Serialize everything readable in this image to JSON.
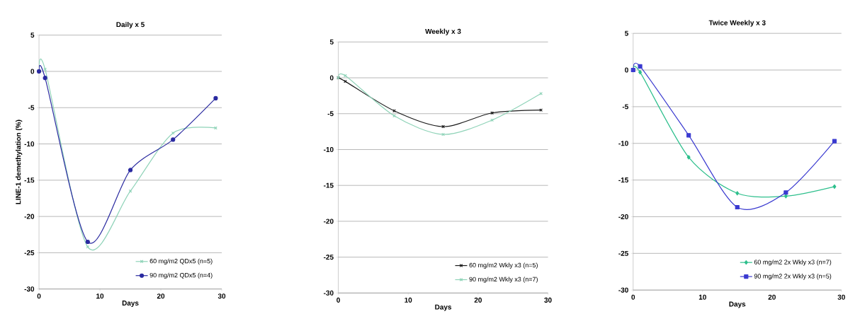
{
  "chart_data": [
    {
      "type": "line",
      "title": "Daily x 5",
      "xlabel": "Days",
      "ylabel": "LINE-1 demethylation (%)",
      "xlim": [
        0,
        30
      ],
      "ylim": [
        -30,
        5
      ],
      "xticks": [
        0,
        10,
        20,
        30
      ],
      "yticks": [
        -30,
        -25,
        -20,
        -15,
        -10,
        -5,
        0,
        5
      ],
      "grid": "y",
      "legend": "bottom right",
      "series": [
        {
          "name": "60 mg/m2  QDx5 (n=5)",
          "color": "#8fd3b8",
          "marker": "cross",
          "x": [
            0,
            1,
            8,
            15,
            22,
            29
          ],
          "values": [
            0,
            0.3,
            -24.2,
            -16.5,
            -8.5,
            -7.8
          ]
        },
        {
          "name": "90 mg/m2  QDx5 (n=4)",
          "color": "#2a2aa0",
          "marker": "circle",
          "x": [
            0,
            1,
            8,
            15,
            22,
            29
          ],
          "values": [
            0,
            -0.9,
            -23.5,
            -13.6,
            -9.4,
            -3.7
          ]
        }
      ]
    },
    {
      "type": "line",
      "title": "Weekly x 3",
      "xlabel": "Days",
      "xlim": [
        0,
        30
      ],
      "ylim": [
        -30,
        5
      ],
      "xticks": [
        0,
        10,
        20,
        30
      ],
      "yticks": [
        -30,
        -25,
        -20,
        -15,
        -10,
        -5,
        0,
        5
      ],
      "grid": "y",
      "legend": "bottom right",
      "series": [
        {
          "name": "60 mg/m2  Wkly x3 (n=5)",
          "color": "#1a1a1a",
          "marker": "cross",
          "x": [
            0,
            1,
            8,
            15,
            22,
            29
          ],
          "values": [
            0,
            -0.5,
            -4.6,
            -6.8,
            -4.9,
            -4.5
          ]
        },
        {
          "name": "90 mg/m2 Wkly x3 (n=7)",
          "color": "#8fd3b8",
          "marker": "cross",
          "x": [
            0,
            1,
            8,
            15,
            22,
            29
          ],
          "values": [
            0,
            0.3,
            -5.3,
            -7.9,
            -5.9,
            -2.2
          ]
        }
      ]
    },
    {
      "type": "line",
      "title": "Twice Weekly x 3",
      "xlabel": "Days",
      "xlim": [
        0,
        30
      ],
      "ylim": [
        -30,
        5
      ],
      "xticks": [
        0,
        10,
        20,
        30
      ],
      "yticks": [
        -30,
        -25,
        -20,
        -15,
        -10,
        -5,
        0,
        5
      ],
      "grid": "y",
      "legend": "bottom right",
      "series": [
        {
          "name": "60 mg/m2  2x Wkly x3 (n=7)",
          "color": "#2dbf8c",
          "marker": "diamond",
          "x": [
            0,
            1,
            8,
            15,
            22,
            29
          ],
          "values": [
            0,
            -0.3,
            -11.9,
            -16.8,
            -17.2,
            -15.9
          ]
        },
        {
          "name": "90 mg/m2 2x Wkly x3 (n=5)",
          "color": "#3a3ad0",
          "marker": "square",
          "x": [
            0,
            1,
            8,
            15,
            22,
            29
          ],
          "values": [
            0,
            0.5,
            -8.9,
            -18.7,
            -16.7,
            -9.7
          ]
        }
      ]
    }
  ]
}
